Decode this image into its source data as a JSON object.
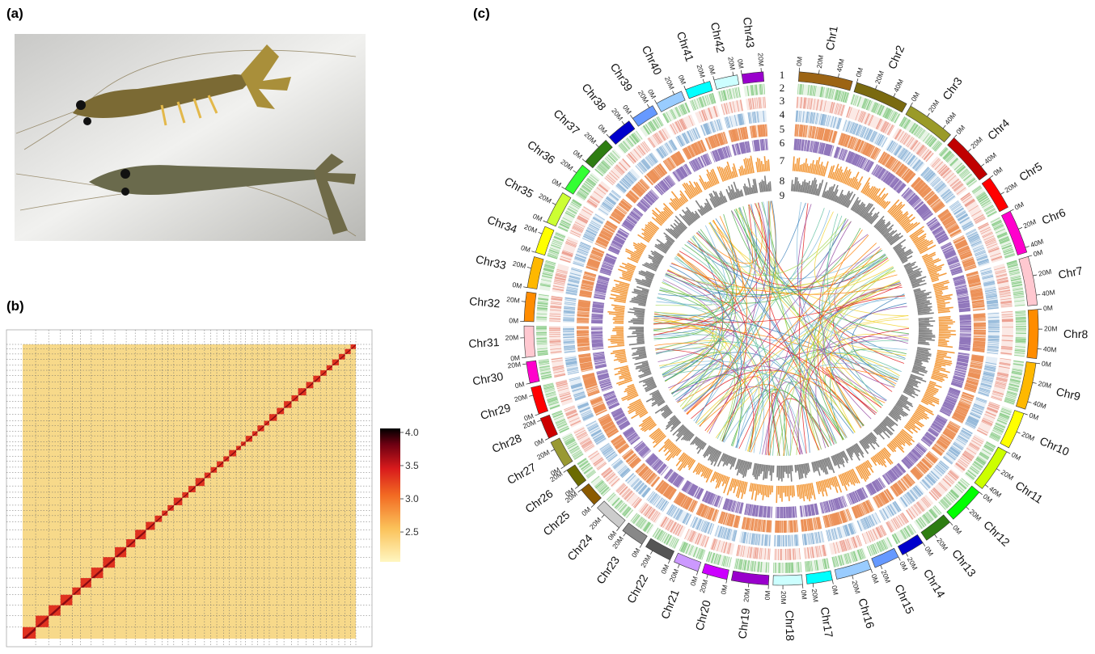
{
  "panels": {
    "a": {
      "label": "(a)"
    },
    "b": {
      "label": "(b)",
      "colorbar": {
        "range": [
          2.05,
          4.06
        ],
        "ticks": [
          2.5,
          {
            "value": 3,
            "label": "3.0"
          },
          3.5,
          {
            "value": 4,
            "label": "4.0"
          }
        ]
      }
    },
    "c": {
      "label": "(c)",
      "track_labels": [
        "1",
        "2",
        "3",
        "4",
        "5",
        "6",
        "7",
        "8",
        "9"
      ],
      "chromosomes": [
        {
          "name": "Chr1",
          "color": "#9c6414",
          "length": 55,
          "ticks": [
            {
              "value": 0,
              "label": "0M"
            },
            {
              "value": 20,
              "label": "20M"
            },
            {
              "value": 40,
              "label": "40M"
            }
          ]
        },
        {
          "name": "Chr2",
          "color": "#7a6a10",
          "length": 55,
          "ticks": [
            {
              "value": 0,
              "label": "0M"
            },
            {
              "value": 20,
              "label": "20M"
            },
            {
              "value": 40,
              "label": "40M"
            }
          ]
        },
        {
          "name": "Chr3",
          "color": "#9a9a28",
          "length": 50,
          "ticks": [
            {
              "value": 0,
              "label": "0M"
            },
            {
              "value": 20,
              "label": "20M"
            },
            {
              "value": 40,
              "label": "40M"
            }
          ]
        },
        {
          "name": "Chr4",
          "color": "#c00000",
          "length": 50,
          "ticks": [
            {
              "value": 0,
              "label": "0M"
            },
            {
              "value": 20,
              "label": "20M"
            },
            {
              "value": 40,
              "label": "40M"
            }
          ]
        },
        {
          "name": "Chr5",
          "color": "#ff0000",
          "length": 35,
          "ticks": [
            {
              "value": 0,
              "label": "0M"
            },
            {
              "value": 20,
              "label": "20M"
            }
          ]
        },
        {
          "name": "Chr6",
          "color": "#ff00cc",
          "length": 45,
          "ticks": [
            {
              "value": 0,
              "label": "0M"
            },
            {
              "value": 20,
              "label": "20M"
            },
            {
              "value": 40,
              "label": "40M"
            }
          ]
        },
        {
          "name": "Chr7",
          "color": "#ffc8d0",
          "length": 50,
          "ticks": [
            {
              "value": 0,
              "label": "0M"
            },
            {
              "value": 20,
              "label": "20M"
            },
            {
              "value": 40,
              "label": "40M"
            }
          ]
        },
        {
          "name": "Chr8",
          "color": "#ff8c00",
          "length": 50,
          "ticks": [
            {
              "value": 0,
              "label": "0M"
            },
            {
              "value": 20,
              "label": "20M"
            },
            {
              "value": 40,
              "label": "40M"
            }
          ]
        },
        {
          "name": "Chr9",
          "color": "#ffb800",
          "length": 48,
          "ticks": [
            {
              "value": 0,
              "label": "0M"
            },
            {
              "value": 20,
              "label": "20M"
            },
            {
              "value": 40,
              "label": "40M"
            }
          ]
        },
        {
          "name": "Chr10",
          "color": "#ffff00",
          "length": 38,
          "ticks": [
            {
              "value": 0,
              "label": "0M"
            },
            {
              "value": 20,
              "label": "20M"
            }
          ]
        },
        {
          "name": "Chr11",
          "color": "#ccff00",
          "length": 45,
          "ticks": [
            {
              "value": 0,
              "label": "0M"
            },
            {
              "value": 20,
              "label": "20M"
            },
            {
              "value": 40,
              "label": "40M"
            }
          ]
        },
        {
          "name": "Chr12",
          "color": "#00ff00",
          "length": 38,
          "ticks": [
            {
              "value": 0,
              "label": "0M"
            },
            {
              "value": 20,
              "label": "20M"
            }
          ]
        },
        {
          "name": "Chr13",
          "color": "#2e7d12",
          "length": 30,
          "ticks": [
            {
              "value": 0,
              "label": "0M"
            },
            {
              "value": 20,
              "label": "20M"
            }
          ]
        },
        {
          "name": "Chr14",
          "color": "#0000cc",
          "length": 24,
          "ticks": [
            {
              "value": 0,
              "label": "0M"
            },
            {
              "value": 20,
              "label": "20M"
            }
          ]
        },
        {
          "name": "Chr15",
          "color": "#6699ff",
          "length": 26,
          "ticks": [
            {
              "value": 0,
              "label": "0M"
            },
            {
              "value": 20,
              "label": "20M"
            }
          ]
        },
        {
          "name": "Chr16",
          "color": "#99ccff",
          "length": 36,
          "ticks": [
            {
              "value": 0,
              "label": "0M"
            },
            {
              "value": 20,
              "label": "20M"
            }
          ]
        },
        {
          "name": "Chr17",
          "color": "#00ffff",
          "length": 26,
          "ticks": [
            {
              "value": 0,
              "label": "0M"
            },
            {
              "value": 20,
              "label": "20M"
            }
          ]
        },
        {
          "name": "Chr18",
          "color": "#ccffff",
          "length": 30,
          "ticks": [
            {
              "value": 0,
              "label": "0M"
            },
            {
              "value": 20,
              "label": "20M"
            }
          ]
        },
        {
          "name": "Chr19",
          "color": "#9900cc",
          "length": 38,
          "ticks": [
            {
              "value": 0,
              "label": "0M"
            },
            {
              "value": 20,
              "label": "20M"
            }
          ]
        },
        {
          "name": "Chr20",
          "color": "#cc00ff",
          "length": 26,
          "ticks": [
            {
              "value": 0,
              "label": "0M"
            },
            {
              "value": 20,
              "label": "20M"
            }
          ]
        },
        {
          "name": "Chr21",
          "color": "#cc99ff",
          "length": 26,
          "ticks": [
            {
              "value": 0,
              "label": "0M"
            },
            {
              "value": 20,
              "label": "20M"
            }
          ]
        },
        {
          "name": "Chr22",
          "color": "#555555",
          "length": 28,
          "ticks": [
            {
              "value": 0,
              "label": "0M"
            },
            {
              "value": 20,
              "label": "20M"
            }
          ]
        },
        {
          "name": "Chr23",
          "color": "#888888",
          "length": 24,
          "ticks": [
            {
              "value": 0,
              "label": "0M"
            },
            {
              "value": 20,
              "label": "20M"
            }
          ]
        },
        {
          "name": "Chr24",
          "color": "#cccccc",
          "length": 30,
          "ticks": [
            {
              "value": 0,
              "label": "0M"
            },
            {
              "value": 20,
              "label": "20M"
            }
          ]
        },
        {
          "name": "Chr25",
          "color": "#8b5a00",
          "length": 20,
          "ticks": [
            {
              "value": 0,
              "label": "0M"
            },
            {
              "value": 20,
              "label": "20M"
            }
          ]
        },
        {
          "name": "Chr26",
          "color": "#6b6b00",
          "length": 20,
          "ticks": [
            {
              "value": 0,
              "label": "0M"
            },
            {
              "value": 20,
              "label": "20M"
            }
          ]
        },
        {
          "name": "Chr27",
          "color": "#999933",
          "length": 28,
          "ticks": [
            {
              "value": 0,
              "label": "0M"
            },
            {
              "value": 20,
              "label": "20M"
            }
          ]
        },
        {
          "name": "Chr28",
          "color": "#cc0000",
          "length": 22,
          "ticks": [
            {
              "value": 0,
              "label": "0M"
            },
            {
              "value": 20,
              "label": "20M"
            }
          ]
        },
        {
          "name": "Chr29",
          "color": "#ff0000",
          "length": 28,
          "ticks": [
            {
              "value": 0,
              "label": "0M"
            },
            {
              "value": 20,
              "label": "20M"
            }
          ]
        },
        {
          "name": "Chr30",
          "color": "#ff00cc",
          "length": 22,
          "ticks": [
            {
              "value": 0,
              "label": "0M"
            },
            {
              "value": 20,
              "label": "20M"
            }
          ]
        },
        {
          "name": "Chr31",
          "color": "#ffc8d0",
          "length": 32,
          "ticks": [
            {
              "value": 0,
              "label": "0M"
            },
            {
              "value": 20,
              "label": "20M"
            }
          ]
        },
        {
          "name": "Chr32",
          "color": "#ff8c00",
          "length": 30,
          "ticks": [
            {
              "value": 0,
              "label": "0M"
            },
            {
              "value": 20,
              "label": "20M"
            }
          ]
        },
        {
          "name": "Chr33",
          "color": "#ffb800",
          "length": 32,
          "ticks": [
            {
              "value": 0,
              "label": "0M"
            },
            {
              "value": 20,
              "label": "20M"
            }
          ]
        },
        {
          "name": "Chr34",
          "color": "#ffff00",
          "length": 28,
          "ticks": [
            {
              "value": 0,
              "label": "0M"
            },
            {
              "value": 20,
              "label": "20M"
            }
          ]
        },
        {
          "name": "Chr35",
          "color": "#ccff33",
          "length": 34,
          "ticks": [
            {
              "value": 0,
              "label": "0M"
            },
            {
              "value": 20,
              "label": "20M"
            }
          ]
        },
        {
          "name": "Chr36",
          "color": "#33ff33",
          "length": 30,
          "ticks": [
            {
              "value": 0,
              "label": "0M"
            },
            {
              "value": 20,
              "label": "20M"
            }
          ]
        },
        {
          "name": "Chr37",
          "color": "#2e7d12",
          "length": 30,
          "ticks": [
            {
              "value": 0,
              "label": "0M"
            },
            {
              "value": 20,
              "label": "20M"
            }
          ]
        },
        {
          "name": "Chr38",
          "color": "#0000cc",
          "length": 26,
          "ticks": [
            {
              "value": 0,
              "label": "0M"
            },
            {
              "value": 20,
              "label": "20M"
            }
          ]
        },
        {
          "name": "Chr39",
          "color": "#6699ff",
          "length": 24,
          "ticks": [
            {
              "value": 0,
              "label": "0M"
            },
            {
              "value": 20,
              "label": "20M"
            }
          ]
        },
        {
          "name": "Chr40",
          "color": "#99ccff",
          "length": 28,
          "ticks": [
            {
              "value": 0,
              "label": "0M"
            },
            {
              "value": 20,
              "label": "20M"
            }
          ]
        },
        {
          "name": "Chr41",
          "color": "#00ffff",
          "length": 26,
          "ticks": [
            {
              "value": 0,
              "label": "0M"
            },
            {
              "value": 20,
              "label": "20M"
            }
          ]
        },
        {
          "name": "Chr42",
          "color": "#ccffff",
          "length": 24,
          "ticks": [
            {
              "value": 0,
              "label": "0M"
            },
            {
              "value": 20,
              "label": "20M"
            }
          ]
        },
        {
          "name": "Chr43",
          "color": "#9900cc",
          "length": 22,
          "ticks": [
            {
              "value": 0,
              "label": "0M"
            },
            {
              "value": 20,
              "label": "20M"
            }
          ]
        }
      ]
    }
  }
}
